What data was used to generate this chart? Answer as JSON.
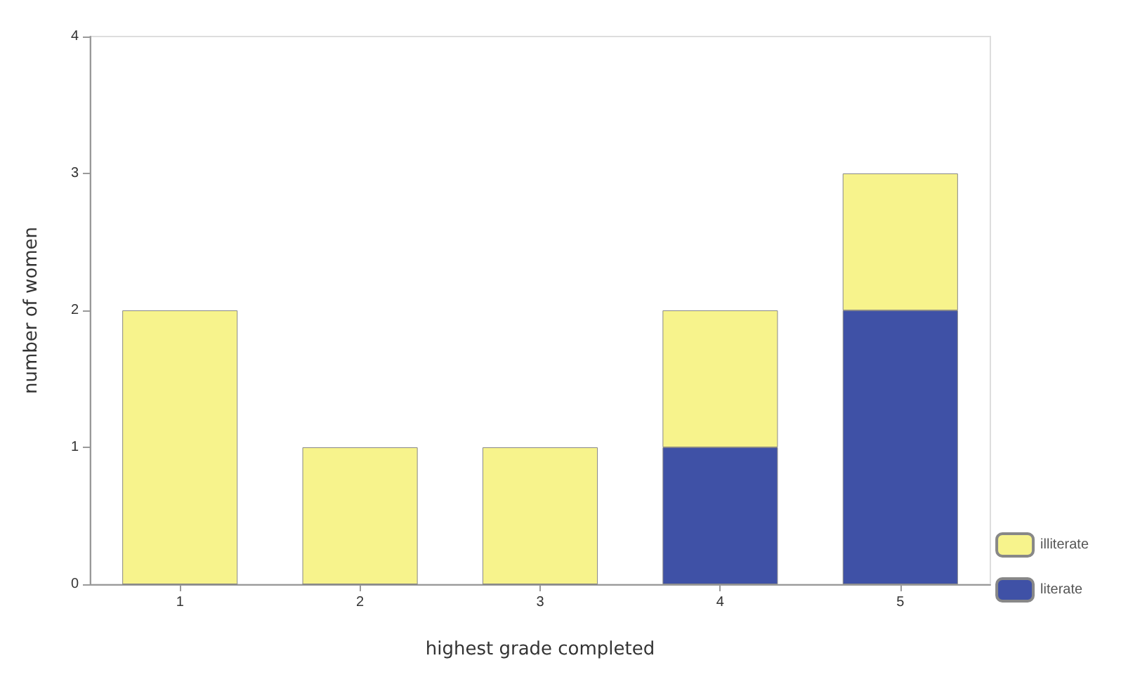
{
  "chart_data": {
    "type": "bar",
    "stacked": true,
    "xlabel": "highest grade completed",
    "ylabel": "number of women",
    "categories": [
      "1",
      "2",
      "3",
      "4",
      "5"
    ],
    "series": [
      {
        "name": "literate",
        "color": "#3f51a6",
        "values": [
          0,
          0,
          0,
          1,
          2
        ]
      },
      {
        "name": "illiterate",
        "color": "#f7f38c",
        "values": [
          2,
          1,
          1,
          1,
          1
        ]
      }
    ],
    "ylim": [
      0,
      4
    ],
    "yticks": [
      0,
      1,
      2,
      3,
      4
    ],
    "grid": false,
    "legend": "bottom right"
  }
}
